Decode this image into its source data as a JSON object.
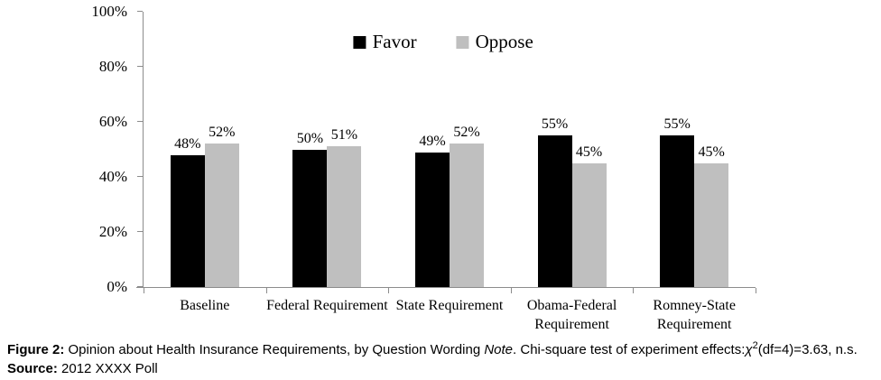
{
  "chart_data": {
    "type": "bar",
    "title": "",
    "categories": [
      "Baseline",
      "Federal Requirement",
      "State Requirement",
      "Obama-Federal Requirement",
      "Romney-State Requirement"
    ],
    "series": [
      {
        "name": "Favor",
        "color": "#000000",
        "values": [
          48,
          50,
          49,
          55,
          55
        ]
      },
      {
        "name": "Oppose",
        "color": "#bfbfbf",
        "values": [
          52,
          51,
          52,
          45,
          45
        ]
      }
    ],
    "value_label_suffix": "%",
    "xlabel": "",
    "ylabel": "",
    "ylim": [
      0,
      100
    ],
    "yticks": [
      "0%",
      "20%",
      "40%",
      "60%",
      "80%",
      "100%"
    ],
    "grid": false,
    "legend_position": "top-center"
  },
  "colors": {
    "favor": "#000000",
    "oppose": "#bfbfbf",
    "axis": "#8c8c8c",
    "background": "#ffffff"
  },
  "caption": {
    "figure_label": "Figure 2:",
    "text1": " Opinion about Health Insurance Requirements, by Question Wording ",
    "note_word": "Note",
    "text2": ". Chi-square test of experiment effects:",
    "chi": "χ",
    "chi_sup": "2",
    "text3": "(df=4)=3.63, n.s.",
    "source_label": "Source:",
    "source_text": " 2012 XXXX Poll"
  }
}
